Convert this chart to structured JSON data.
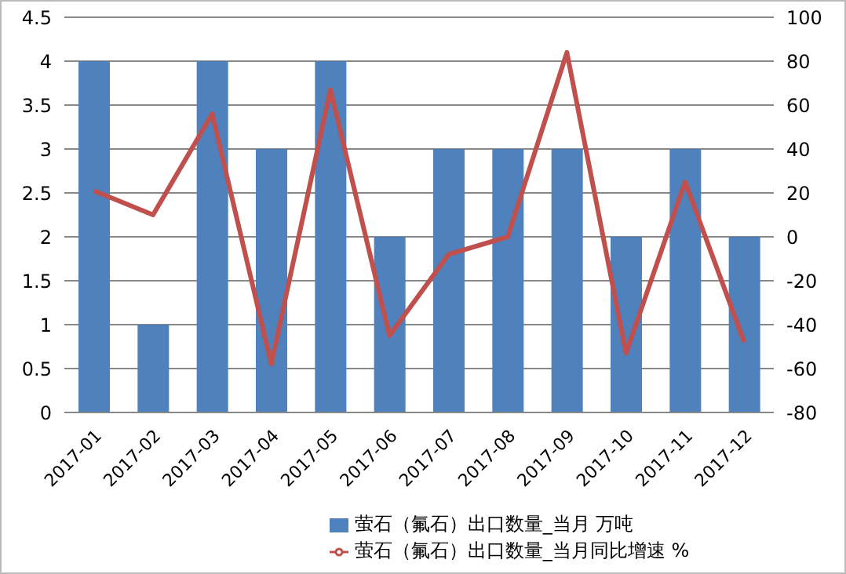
{
  "chart_data": {
    "type": "bar",
    "categories": [
      "2017-01",
      "2017-02",
      "2017-03",
      "2017-04",
      "2017-05",
      "2017-06",
      "2017-07",
      "2017-08",
      "2017-09",
      "2017-10",
      "2017-11",
      "2017-12"
    ],
    "series": [
      {
        "name": "萤石（氟石）出口数量_当月 万吨",
        "color": "#4f81bd",
        "values": [
          4,
          1,
          4,
          3,
          4,
          2,
          3,
          3,
          3,
          2,
          3,
          2
        ]
      },
      {
        "name": "萤石（氟石）出口数量_当月同比增速 %",
        "type": "line",
        "axis": "y2",
        "color": "#c0504d",
        "marker": "none",
        "values": [
          21,
          10,
          56,
          -58,
          67,
          -45,
          -8,
          0,
          84,
          -53,
          25,
          -48
        ]
      }
    ],
    "ylim": [
      0,
      4.5
    ],
    "yticks": [
      0,
      0.5,
      1,
      1.5,
      2,
      2.5,
      3,
      3.5,
      4,
      4.5
    ],
    "y2lim": [
      -80,
      100
    ],
    "y2ticks": [
      -80,
      -60,
      -40,
      -20,
      0,
      20,
      40,
      60,
      80,
      100
    ],
    "grid": "y",
    "legend": "bottom"
  }
}
